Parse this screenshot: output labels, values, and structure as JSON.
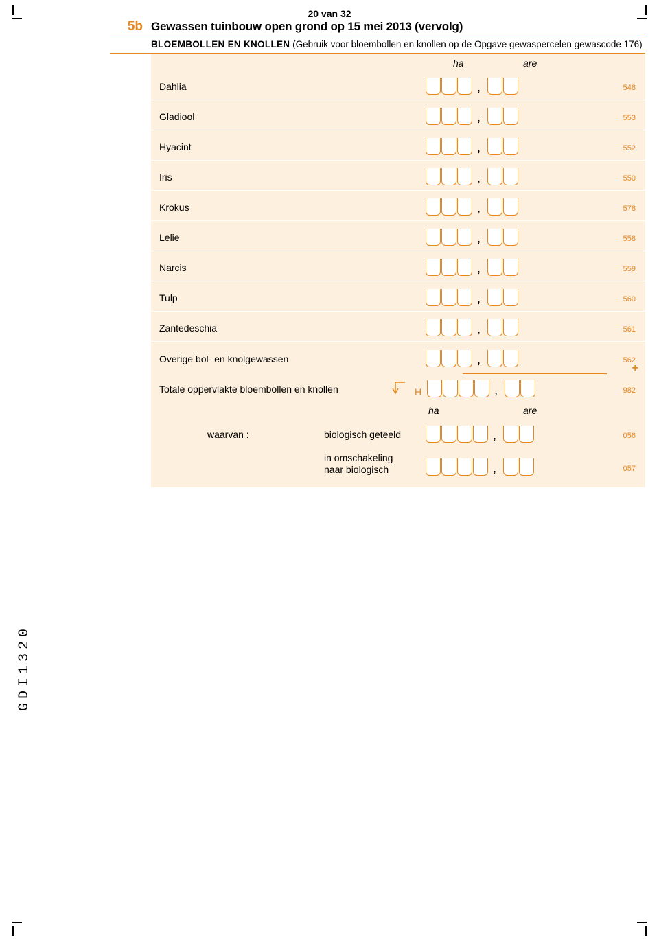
{
  "page": {
    "number_label": "20 van 32"
  },
  "section": {
    "number": "5b",
    "title": "Gewassen tuinbouw open grond op 15 mei 2013 (vervolg)",
    "subtitle_strong": "BLOEMBOLLEN EN KNOLLEN",
    "subtitle_rest": " (Gebruik voor bloembollen en knollen op de Opgave gewaspercelen gewascode 176)"
  },
  "headers": {
    "ha": "ha",
    "are": "are"
  },
  "rows": [
    {
      "label": "Dahlia",
      "code": "548"
    },
    {
      "label": "Gladiool",
      "code": "553"
    },
    {
      "label": "Hyacint",
      "code": "552"
    },
    {
      "label": "Iris",
      "code": "550"
    },
    {
      "label": "Krokus",
      "code": "578"
    },
    {
      "label": "Lelie",
      "code": "558"
    },
    {
      "label": "Narcis",
      "code": "559"
    },
    {
      "label": "Tulp",
      "code": "560"
    },
    {
      "label": "Zantedeschia",
      "code": "561"
    },
    {
      "label": "Overige bol- en knolgewassen",
      "code": "562"
    }
  ],
  "total": {
    "label": "Totale oppervlakte bloembollen en knollen",
    "letter": "H",
    "code": "982"
  },
  "footer": {
    "waarvan": "waarvan :",
    "bio": "biologisch geteeld",
    "bio_code": "056",
    "conv_line1": "in omschakeling",
    "conv_line2": "naar biologisch",
    "conv_code": "057"
  },
  "sidecode": "GDI1320",
  "colors": {
    "accent": "#e8871d",
    "panel_bg": "#fdf0de",
    "cell_border": "#e8871d",
    "cell_bg": "#ffffff"
  }
}
